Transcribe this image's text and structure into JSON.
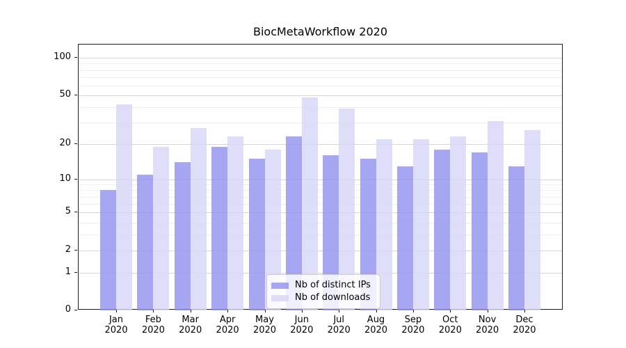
{
  "title": "BiocMetaWorkflow 2020",
  "chart_data": {
    "type": "bar",
    "title": "BiocMetaWorkflow 2020",
    "categories": [
      "Jan",
      "Feb",
      "Mar",
      "Apr",
      "May",
      "Jun",
      "Jul",
      "Aug",
      "Sep",
      "Oct",
      "Nov",
      "Dec"
    ],
    "x_year_line": "2020",
    "xticklabels": [
      "Jan\n2020",
      "Feb\n2020",
      "Mar\n2020",
      "Apr\n2020",
      "May\n2020",
      "Jun\n2020",
      "Jul\n2020",
      "Aug\n2020",
      "Sep\n2020",
      "Oct\n2020",
      "Nov\n2020",
      "Dec\n2020"
    ],
    "series": [
      {
        "name": "Nb of distinct IPs",
        "color": "#9191ee",
        "alpha": 0.8,
        "values": [
          8,
          11,
          14,
          19,
          15,
          23,
          16,
          15,
          13,
          18,
          17,
          13
        ]
      },
      {
        "name": "Nb of downloads",
        "color": "#d6d6f7",
        "alpha": 0.8,
        "values": [
          42,
          19,
          27,
          23,
          18,
          48,
          39,
          22,
          22,
          23,
          31,
          26
        ]
      }
    ],
    "xlabel": "",
    "ylabel": "",
    "yscale": "log1p",
    "ylim": [
      0,
      128
    ],
    "yticks": [
      0,
      1,
      2,
      5,
      10,
      20,
      50,
      100
    ],
    "minor_gridlines": [
      3,
      4,
      6,
      7,
      8,
      9,
      30,
      40,
      60,
      70,
      80,
      90
    ],
    "grid": true,
    "legend_position": "lower center"
  },
  "colors": {
    "background": "#ffffff",
    "bar_distinct_ips": "#a7a7f0",
    "bar_downloads": "#dedef9",
    "major_grid": "#d6d6d6",
    "minor_grid": "#ededed",
    "axis_frame": "#1a1a1a",
    "legend_border": "#cccccc"
  }
}
